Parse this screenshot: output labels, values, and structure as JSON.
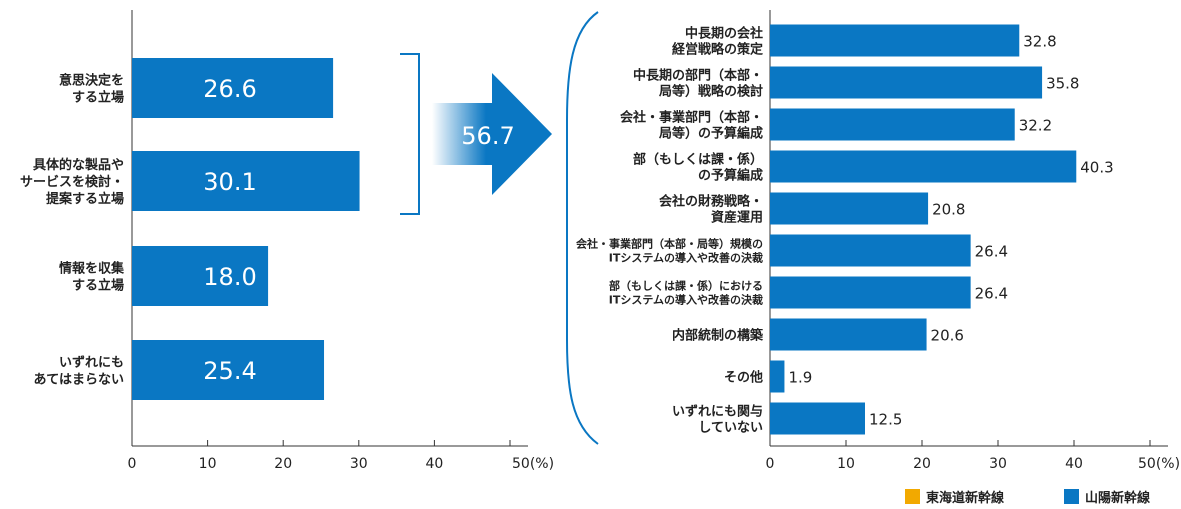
{
  "colors": {
    "bar": "#0a77c3",
    "legend_tokaido": "#f2a900",
    "legend_sanyo": "#0a77c3",
    "axis": "#333333"
  },
  "chart_data": [
    {
      "type": "bar",
      "orientation": "horizontal",
      "categories": [
        [
          "意思決定を",
          "する立場"
        ],
        [
          "具体的な製品や",
          "サービスを検討・",
          "提案する立場"
        ],
        [
          "情報を収集",
          "する立場"
        ],
        [
          "いずれにも",
          "あてはまらない"
        ]
      ],
      "values": [
        26.6,
        30.1,
        18.0,
        25.4
      ],
      "value_labels": [
        "26.6",
        "30.1",
        "18.0",
        "25.4"
      ],
      "xlim": [
        0,
        50
      ],
      "xticks": [
        "0",
        "10",
        "20",
        "30",
        "40",
        "50(%)"
      ],
      "grid": false
    },
    {
      "type": "bar",
      "orientation": "horizontal",
      "categories": [
        [
          "中長期の会社",
          "経営戦略の策定"
        ],
        [
          "中長期の部門（本部・",
          "局等）戦略の検討"
        ],
        [
          "会社・事業部門（本部・",
          "局等）の予算編成"
        ],
        [
          "部（もしくは課・係）",
          "の予算編成"
        ],
        [
          "会社の財務戦略・",
          "資産運用"
        ],
        [
          "会社・事業部門（本部・局等）規模の",
          "ITシステムの導入や改善の決裁"
        ],
        [
          "部（もしくは課・係）における",
          "ITシステムの導入や改善の決裁"
        ],
        [
          "内部統制の構築"
        ],
        [
          "その他"
        ],
        [
          "いずれにも関与",
          "していない"
        ]
      ],
      "small_label_rows": [
        5,
        6
      ],
      "values": [
        32.8,
        35.8,
        32.2,
        40.3,
        20.8,
        26.4,
        26.4,
        20.6,
        1.9,
        12.5
      ],
      "value_labels": [
        "32.8",
        "35.8",
        "32.2",
        "40.3",
        "20.8",
        "26.4",
        "26.4",
        "20.6",
        "1.9",
        "12.5"
      ],
      "xlim": [
        0,
        50
      ],
      "xticks": [
        "0",
        "10",
        "20",
        "30",
        "40",
        "50(%)"
      ],
      "grid": false
    }
  ],
  "combined": {
    "value": 56.7,
    "label": "56.7"
  },
  "legend": {
    "placement": "bottom-right",
    "items": [
      "東海道新幹線",
      "山陽新幹線"
    ]
  }
}
